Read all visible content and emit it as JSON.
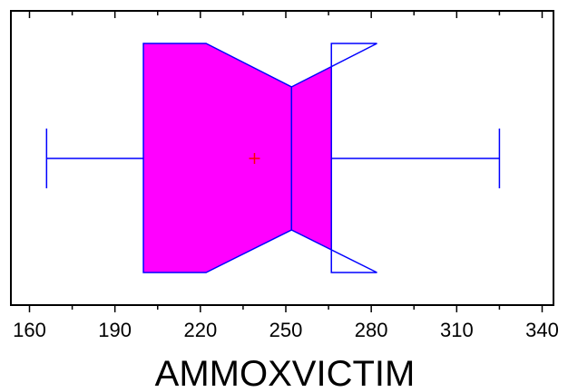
{
  "chart_data": {
    "type": "boxplot",
    "orientation": "horizontal",
    "notched": true,
    "variable": "AMMOXVICTIM",
    "xlabel": "AMMOXVICTIM",
    "xlim": [
      155,
      343
    ],
    "x_ticks": [
      160,
      190,
      220,
      250,
      280,
      310,
      340
    ],
    "x_tick_labels": [
      "160",
      "190",
      "220",
      "250",
      "280",
      "310",
      "340"
    ],
    "box": {
      "whisker_low": 166,
      "q1": 200,
      "median": 252,
      "q3": 266,
      "whisker_high": 325,
      "mean": 239,
      "notch_low": 222,
      "notch_high": 282
    },
    "colors": {
      "box_fill": "#ff00ff",
      "box_outline": "#0000ff",
      "mean_marker": "#ff0000",
      "frame": "#000000"
    }
  }
}
